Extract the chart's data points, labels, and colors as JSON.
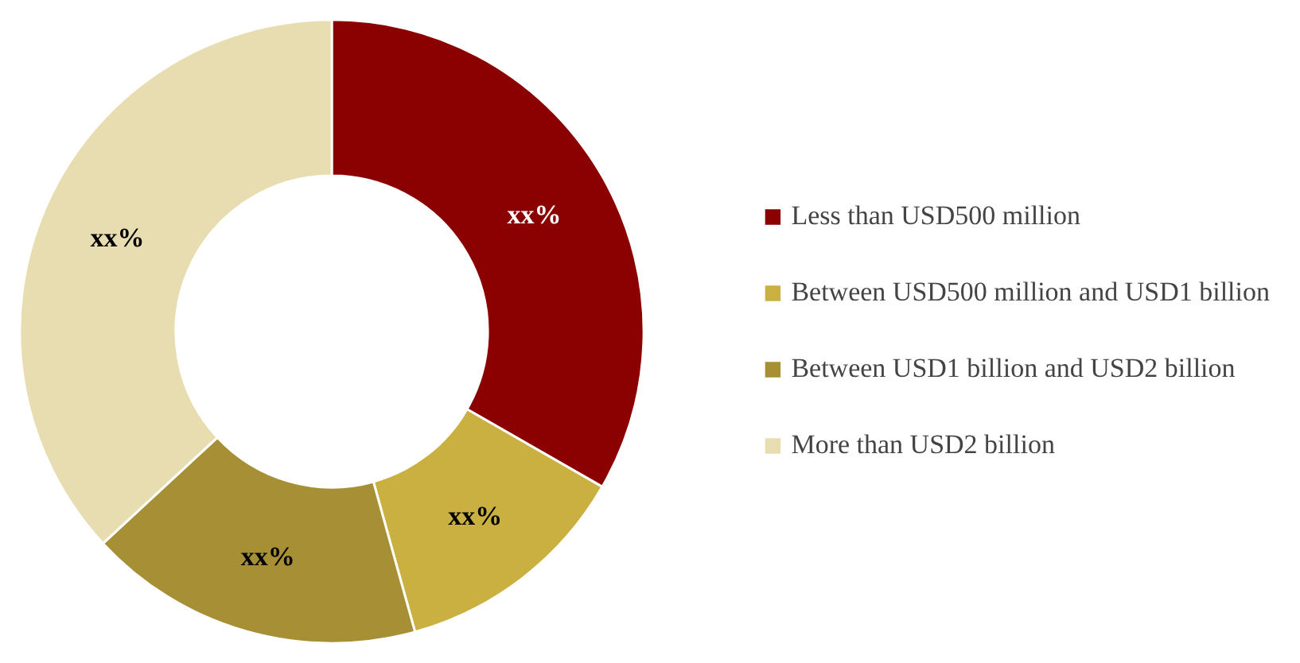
{
  "chart_data": {
    "type": "donut",
    "categories": [
      "Less than USD500 million",
      "Between USD500 million and USD1 billion",
      "Between USD1 billion and USD2 billion",
      "More than USD2 billion"
    ],
    "values": [
      33.3,
      12.4,
      17.4,
      36.9
    ],
    "colors": [
      "#8b0000",
      "#c9b040",
      "#a68f35",
      "#e8ddb0"
    ],
    "value_labels": [
      "xx%",
      "xx%",
      "xx%",
      "xx%"
    ],
    "legend": "right"
  }
}
